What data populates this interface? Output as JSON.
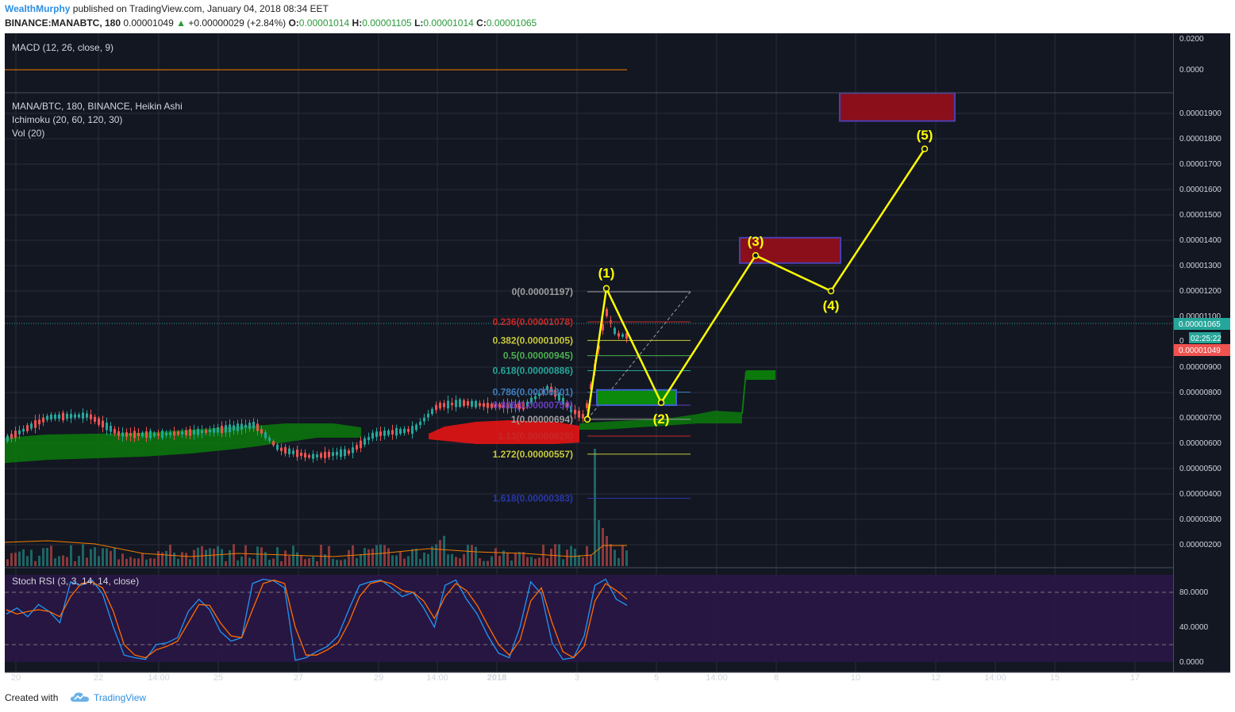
{
  "header": {
    "author": "WealthMurphy",
    "published": "published on TradingView.com, January 04, 2018 08:34 EET",
    "symbol": "BINANCE:MANABTC, 180",
    "last": "0.00001049",
    "change": "+0.00000029 (+2.84%)",
    "open_label": "O:",
    "open": "0.00001014",
    "high_label": "H:",
    "high": "0.00001105",
    "low_label": "L:",
    "low": "0.00001014",
    "close_label": "C:",
    "close": "0.00001065"
  },
  "footer": {
    "created": "Created with",
    "brand": "TradingView",
    "logo_icon": "tradingview-cloud-icon"
  },
  "colors": {
    "background": "#131722",
    "grid": "#2a2e39",
    "up": "#26a69a",
    "down": "#ef5350",
    "cloud_green": "#0b7a0b",
    "cloud_red": "#e51414",
    "wave": "#ffff00",
    "stoch_band": "#2a1646",
    "k_line": "#2196f3",
    "d_line": "#ff6d00"
  },
  "panes": {
    "macd": {
      "title": "MACD (12, 26, close, 9)",
      "ticks": [
        "0.0200",
        "0.0000"
      ]
    },
    "main": {
      "title": "MANA/BTC, 180, BINANCE, Heikin Ashi",
      "indicators": [
        "Ichimoku (20, 60, 120, 30)",
        "Vol (20)"
      ],
      "price_labels": {
        "current": "0.00001065",
        "countdown": "02:25:22",
        "partial": "0",
        "last": "0.00001049"
      }
    },
    "stoch": {
      "title": "Stoch RSI (3, 3, 14, 14, close)",
      "ticks": [
        "80.0000",
        "40.0000",
        "0.0000"
      ]
    }
  },
  "x_axis": {
    "ticks": [
      "20",
      "22",
      "14:00",
      "25",
      "27",
      "29",
      "14:00",
      "2018",
      "3",
      "5",
      "14:00",
      "8",
      "10",
      "12",
      "14:00",
      "15",
      "17"
    ]
  },
  "chart_data": {
    "type": "candlestick",
    "chart_style": "Heikin Ashi",
    "symbol": "MANA/BTC",
    "exchange": "BINANCE",
    "interval": "180",
    "y_ticks": [
      2e-06,
      3e-06,
      4e-06,
      5e-06,
      6e-06,
      7e-06,
      8e-06,
      9e-06,
      1.1e-05,
      1.2e-05,
      1.3e-05,
      1.4e-05,
      1.5e-05,
      1.6e-05,
      1.7e-05,
      1.8e-05,
      1.9e-05
    ],
    "y_tick_labels": [
      "0.00000200",
      "0.00000300",
      "0.00000400",
      "0.00000500",
      "0.00000600",
      "0.00000700",
      "0.00000800",
      "0.00000900",
      "0.00001100",
      "0.00001200",
      "0.00001300",
      "0.00001400",
      "0.00001500",
      "0.00001600",
      "0.00001700",
      "0.00001800",
      "0.00001900"
    ],
    "fibonacci": [
      {
        "label": "0(0.00001197)",
        "level": 0,
        "price": 1.197e-05,
        "color": "#9e9e9e"
      },
      {
        "label": "0.236(0.00001078)",
        "level": 0.236,
        "price": 1.078e-05,
        "color": "#c62828"
      },
      {
        "label": "0.382(0.00001005)",
        "level": 0.382,
        "price": 1.005e-05,
        "color": "#c6c83a"
      },
      {
        "label": "0.5(0.00000945)",
        "level": 0.5,
        "price": 9.45e-06,
        "color": "#4caf50"
      },
      {
        "label": "0.618(0.00000886)",
        "level": 0.618,
        "price": 8.86e-06,
        "color": "#26a69a"
      },
      {
        "label": "0.786(0.00000801)",
        "level": 0.786,
        "price": 8.01e-06,
        "color": "#3f7fbf"
      },
      {
        "label": "0.886(0.00000750)",
        "level": 0.886,
        "price": 7.5e-06,
        "color": "#6a3fbf"
      },
      {
        "label": "1(0.00000694)",
        "level": 1,
        "price": 6.94e-06,
        "color": "#9e9e9e"
      },
      {
        "label": "1.13(0.00000628)",
        "level": 1.13,
        "price": 6.28e-06,
        "color": "#c62828"
      },
      {
        "label": "1.272(0.00000557)",
        "level": 1.272,
        "price": 5.57e-06,
        "color": "#c6c83a"
      },
      {
        "label": "1.618(0.00000383)",
        "level": 1.618,
        "price": 3.83e-06,
        "color": "#2838a8"
      }
    ],
    "elliott_wave": [
      {
        "label": "",
        "price": 6.94e-06
      },
      {
        "label": "(1)",
        "price": 1.21e-05
      },
      {
        "label": "(2)",
        "price": 7.6e-06
      },
      {
        "label": "(3)",
        "price": 1.34e-05
      },
      {
        "label": "(4)",
        "price": 1.2e-05
      },
      {
        "label": "(5)",
        "price": 1.76e-05
      }
    ],
    "target_zones": [
      {
        "from": 1.31e-05,
        "to": 1.41e-05,
        "color": "#8b0f1a"
      },
      {
        "from": 1.87e-05,
        "to": 1.98e-05,
        "color": "#8b0f1a"
      }
    ],
    "support_zone": {
      "from": 7.5e-06,
      "to": 8.1e-06,
      "color": "#0b8a0b"
    },
    "stoch_rsi": {
      "k": [
        55,
        62,
        52,
        66,
        58,
        45,
        92,
        88,
        94,
        78,
        40,
        8,
        5,
        3,
        20,
        22,
        28,
        58,
        72,
        60,
        35,
        24,
        28,
        90,
        95,
        93,
        85,
        2,
        5,
        12,
        18,
        30,
        60,
        88,
        92,
        94,
        85,
        75,
        80,
        62,
        40,
        88,
        94,
        72,
        55,
        30,
        10,
        5,
        40,
        92,
        78,
        22,
        3,
        5,
        30,
        88,
        95,
        72,
        65
      ],
      "d": [
        60,
        55,
        58,
        60,
        58,
        52,
        75,
        90,
        92,
        85,
        58,
        20,
        8,
        5,
        14,
        18,
        24,
        45,
        66,
        65,
        45,
        30,
        28,
        60,
        90,
        94,
        90,
        40,
        8,
        8,
        14,
        22,
        45,
        75,
        90,
        93,
        90,
        82,
        80,
        70,
        50,
        75,
        90,
        82,
        65,
        42,
        20,
        8,
        25,
        70,
        85,
        45,
        12,
        5,
        18,
        70,
        90,
        82,
        72
      ]
    }
  }
}
